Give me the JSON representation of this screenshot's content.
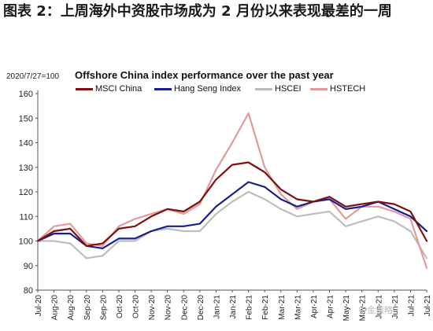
{
  "figure_title": "图表 2：上周海外中资股市场成为 2 月份以来表现最差的一周",
  "watermark": "中金策略",
  "chart_data": {
    "type": "line",
    "title": "Offshore China index performance over the past year",
    "base_note": "2020/7/27=100",
    "ylim": [
      80,
      160
    ],
    "yticks": [
      80,
      90,
      100,
      110,
      120,
      130,
      140,
      150,
      160
    ],
    "categories": [
      "Jul-20",
      "Aug-20",
      "Aug-20",
      "Sep-20",
      "Sep-20",
      "Oct-20",
      "Oct-20",
      "Nov-20",
      "Nov-20",
      "Dec-20",
      "Dec-20",
      "Jan-21",
      "Jan-21",
      "Feb-21",
      "Feb-21",
      "Mar-21",
      "Mar-21",
      "Apr-21",
      "Apr-21",
      "May-21",
      "May-21",
      "Jun-21",
      "Jun-21",
      "Jul-21",
      "Jul-21"
    ],
    "legend_position": "top",
    "series": [
      {
        "name": "MSCI China",
        "color": "#7f1010",
        "values": [
          100,
          104,
          105,
          98,
          99,
          105,
          106,
          110,
          113,
          112,
          116,
          125,
          131,
          132,
          128,
          121,
          117,
          116,
          118,
          114,
          115,
          116,
          115,
          112,
          100
        ]
      },
      {
        "name": "Hang Seng Index",
        "color": "#1a1f8f",
        "values": [
          100,
          103,
          103,
          98,
          97,
          101,
          101,
          104,
          106,
          106,
          107,
          114,
          119,
          124,
          122,
          117,
          114,
          116,
          117,
          113,
          114,
          116,
          113,
          110,
          104
        ]
      },
      {
        "name": "HSCEI",
        "color": "#bdbdbd",
        "values": [
          100,
          100,
          99,
          93,
          94,
          100,
          100,
          104,
          105,
          104,
          104,
          111,
          116,
          120,
          117,
          113,
          110,
          111,
          112,
          106,
          108,
          110,
          108,
          104,
          93
        ]
      },
      {
        "name": "HSTECH",
        "color": "#e39a9a",
        "values": [
          100,
          106,
          107,
          99,
          98,
          106,
          109,
          111,
          113,
          111,
          115,
          129,
          140,
          152,
          130,
          119,
          113,
          116,
          117,
          109,
          114,
          114,
          112,
          109,
          89
        ]
      }
    ]
  }
}
